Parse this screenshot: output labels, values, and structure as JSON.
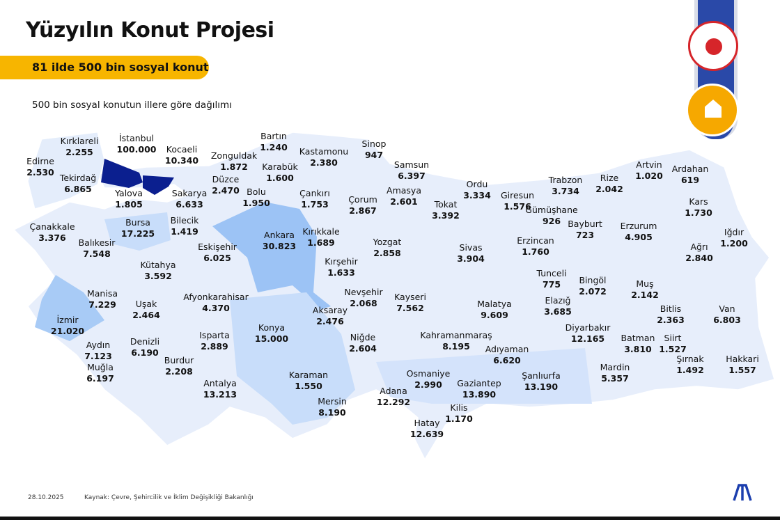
{
  "title": "Yüzyılın Konut Projesi",
  "badge": "81 ilde 500 bin sosyal konut",
  "subtitle": "500 bin sosyal konutun illere göre dağılımı",
  "footer": {
    "date": "28.10.2025",
    "source": "Kaynak: Çevre, Şehircilik ve İklim Değişikliği Bakanlığı"
  },
  "logos": {
    "ministry_seal": "Çevre, Şehircilik ve İklim Değişikliği Bakanlığı",
    "project_seal": "Yüzyılın Konut Projesi 500 bin sosyal konut",
    "agency": "AA"
  },
  "colors": {
    "highest": "#0b1f8f",
    "high": "#9cc3f5",
    "mid": "#c8ddfa",
    "low": "#e4edfb",
    "badge": "#f7b500"
  },
  "provinces": [
    {
      "name": "Kırklareli",
      "value": "2.255"
    },
    {
      "name": "İstanbul",
      "value": "100.000"
    },
    {
      "name": "Kocaeli",
      "value": "10.340"
    },
    {
      "name": "Edirne",
      "value": "2.530"
    },
    {
      "name": "Tekirdağ",
      "value": "6.865"
    },
    {
      "name": "Yalova",
      "value": "1.805"
    },
    {
      "name": "Sakarya",
      "value": "6.633"
    },
    {
      "name": "Düzce",
      "value": "2.470"
    },
    {
      "name": "Zonguldak",
      "value": "1.872"
    },
    {
      "name": "Bartın",
      "value": "1.240"
    },
    {
      "name": "Karabük",
      "value": "1.600"
    },
    {
      "name": "Bolu",
      "value": "1.950"
    },
    {
      "name": "Kastamonu",
      "value": "2.380"
    },
    {
      "name": "Sinop",
      "value": "947"
    },
    {
      "name": "Samsun",
      "value": "6.397"
    },
    {
      "name": "Çankırı",
      "value": "1.753"
    },
    {
      "name": "Çorum",
      "value": "2.867"
    },
    {
      "name": "Amasya",
      "value": "2.601"
    },
    {
      "name": "Ordu",
      "value": "3.334"
    },
    {
      "name": "Tokat",
      "value": "3.392"
    },
    {
      "name": "Giresun",
      "value": "1.576"
    },
    {
      "name": "Trabzon",
      "value": "3.734"
    },
    {
      "name": "Rize",
      "value": "2.042"
    },
    {
      "name": "Artvin",
      "value": "1.020"
    },
    {
      "name": "Ardahan",
      "value": "619"
    },
    {
      "name": "Kars",
      "value": "1.730"
    },
    {
      "name": "Gümüşhane",
      "value": "926"
    },
    {
      "name": "Bayburt",
      "value": "723"
    },
    {
      "name": "Erzurum",
      "value": "4.905"
    },
    {
      "name": "Iğdır",
      "value": "1.200"
    },
    {
      "name": "Ağrı",
      "value": "2.840"
    },
    {
      "name": "Erzincan",
      "value": "1.760"
    },
    {
      "name": "Sivas",
      "value": "3.904"
    },
    {
      "name": "Yozgat",
      "value": "2.858"
    },
    {
      "name": "Kırıkkale",
      "value": "1.689"
    },
    {
      "name": "Ankara",
      "value": "30.823"
    },
    {
      "name": "Kırşehir",
      "value": "1.633"
    },
    {
      "name": "Nevşehir",
      "value": "2.068"
    },
    {
      "name": "Aksaray",
      "value": "2.476"
    },
    {
      "name": "Kayseri",
      "value": "7.562"
    },
    {
      "name": "Malatya",
      "value": "9.609"
    },
    {
      "name": "Tunceli",
      "value": "775"
    },
    {
      "name": "Elazığ",
      "value": "3.685"
    },
    {
      "name": "Bingöl",
      "value": "2.072"
    },
    {
      "name": "Muş",
      "value": "2.142"
    },
    {
      "name": "Bitlis",
      "value": "2.363"
    },
    {
      "name": "Van",
      "value": "6.803"
    },
    {
      "name": "Diyarbakır",
      "value": "12.165"
    },
    {
      "name": "Batman",
      "value": "3.810"
    },
    {
      "name": "Siirt",
      "value": "1.527"
    },
    {
      "name": "Şırnak",
      "value": "1.492"
    },
    {
      "name": "Hakkari",
      "value": "1.557"
    },
    {
      "name": "Mardin",
      "value": "5.357"
    },
    {
      "name": "Şanlıurfa",
      "value": "13.190"
    },
    {
      "name": "Adıyaman",
      "value": "6.620"
    },
    {
      "name": "Kahramanmaraş",
      "value": "8.195"
    },
    {
      "name": "Gaziantep",
      "value": "13.890"
    },
    {
      "name": "Osmaniye",
      "value": "2.990"
    },
    {
      "name": "Kilis",
      "value": "1.170"
    },
    {
      "name": "Hatay",
      "value": "12.639"
    },
    {
      "name": "Adana",
      "value": "12.292"
    },
    {
      "name": "Mersin",
      "value": "8.190"
    },
    {
      "name": "Karaman",
      "value": "1.550"
    },
    {
      "name": "Niğde",
      "value": "2.604"
    },
    {
      "name": "Konya",
      "value": "15.000"
    },
    {
      "name": "Antalya",
      "value": "13.213"
    },
    {
      "name": "Burdur",
      "value": "2.208"
    },
    {
      "name": "Isparta",
      "value": "2.889"
    },
    {
      "name": "Afyonkarahisar",
      "value": "4.370"
    },
    {
      "name": "Uşak",
      "value": "2.464"
    },
    {
      "name": "Kütahya",
      "value": "3.592"
    },
    {
      "name": "Eskişehir",
      "value": "6.025"
    },
    {
      "name": "Bilecik",
      "value": "1.419"
    },
    {
      "name": "Bursa",
      "value": "17.225"
    },
    {
      "name": "Balıkesir",
      "value": "7.548"
    },
    {
      "name": "Çanakkale",
      "value": "3.376"
    },
    {
      "name": "Manisa",
      "value": "7.229"
    },
    {
      "name": "İzmir",
      "value": "21.020"
    },
    {
      "name": "Aydın",
      "value": "7.123"
    },
    {
      "name": "Denizli",
      "value": "6.190"
    },
    {
      "name": "Muğla",
      "value": "6.197"
    }
  ]
}
